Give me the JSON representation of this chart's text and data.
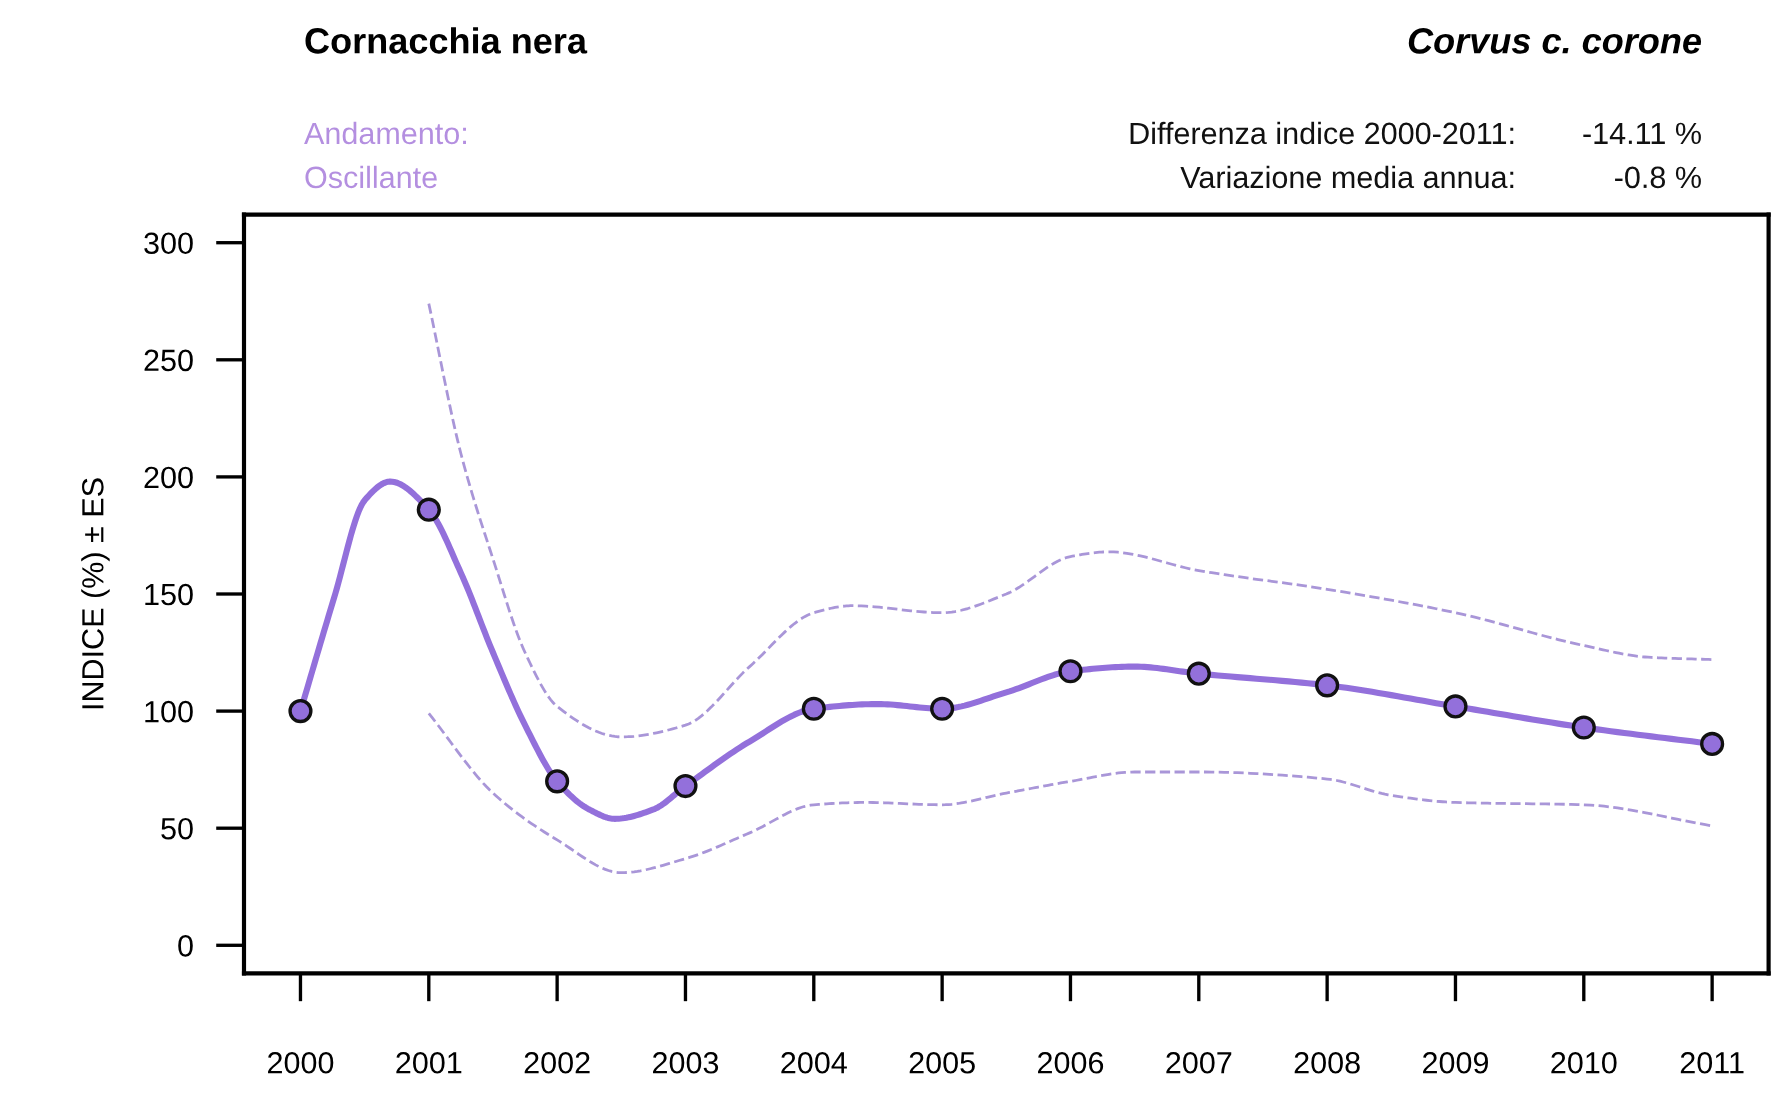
{
  "chart_data": {
    "type": "line",
    "title": "Cornacchia nera",
    "subtitle": "Corvus c. corone",
    "ylabel": "INDICE (%) ± ES",
    "annotations": [
      "Andamento:",
      "Oscillante",
      "Differenza indice 2000-2011:",
      "Variazione media annua:",
      "-14.11 %",
      "-0.8 %"
    ],
    "series": [
      {
        "color": "#a996d8",
        "line_style": "dashed",
        "marker": "none",
        "x": [
          2001,
          2001.25,
          2001.5,
          2001.75,
          2002,
          2002.5,
          2003,
          2003.5,
          2004,
          2004.3,
          2005,
          2005.5,
          2006,
          2006.3,
          2007,
          2008,
          2009,
          2010,
          2010.5,
          2011
        ],
        "values": [
          274,
          210,
          165,
          125,
          102,
          89,
          94,
          119,
          142,
          145,
          142,
          150,
          166,
          168,
          160,
          152,
          142,
          128,
          123,
          122
        ]
      },
      {
        "color": "#a996d8",
        "line_style": "dashed",
        "marker": "none",
        "x": [
          2001,
          2001.5,
          2002,
          2002.5,
          2003,
          2003.5,
          2004,
          2004.4,
          2005,
          2005.5,
          2006,
          2006.5,
          2007,
          2008,
          2008.5,
          2009,
          2010,
          2011
        ],
        "values": [
          99,
          65,
          45,
          31,
          37,
          48,
          60,
          61,
          60,
          65,
          70,
          74,
          74,
          71,
          64,
          61,
          60,
          51
        ]
      },
      {
        "color": "#9370db",
        "line_style": "solid",
        "marker": "none",
        "x": [
          2000,
          2000.26,
          2000.5,
          2000.7,
          2001,
          2001.25,
          2001.5,
          2001.75,
          2002,
          2002.25,
          2002.45,
          2002.75,
          2003,
          2003.5,
          2004,
          2004.5,
          2005,
          2005.5,
          2006,
          2006.5,
          2007,
          2008,
          2009,
          2010,
          2011
        ],
        "values": [
          100,
          148,
          190,
          198,
          186,
          159,
          125,
          94,
          70,
          58,
          54,
          58,
          68,
          87,
          101,
          103,
          101,
          108,
          117,
          119,
          116,
          111,
          102,
          93,
          86
        ]
      },
      {
        "type": "scatter",
        "color": "#9370db",
        "marker": "circle",
        "x": [
          2000,
          2001,
          2002,
          2003,
          2004,
          2005,
          2006,
          2007,
          2008,
          2009,
          2010,
          2011
        ],
        "values": [
          100,
          186,
          70,
          68,
          101,
          101,
          117,
          116,
          111,
          102,
          93,
          86
        ]
      }
    ],
    "xlim": [
      1999.56,
      2011.44
    ],
    "xticks": [
      2000,
      2001,
      2002,
      2003,
      2004,
      2005,
      2006,
      2007,
      2008,
      2009,
      2010,
      2011
    ],
    "ylim": [
      -12,
      312
    ],
    "yticks": [
      0,
      50,
      100,
      150,
      200,
      250,
      300
    ],
    "grid": false,
    "legend": false
  }
}
